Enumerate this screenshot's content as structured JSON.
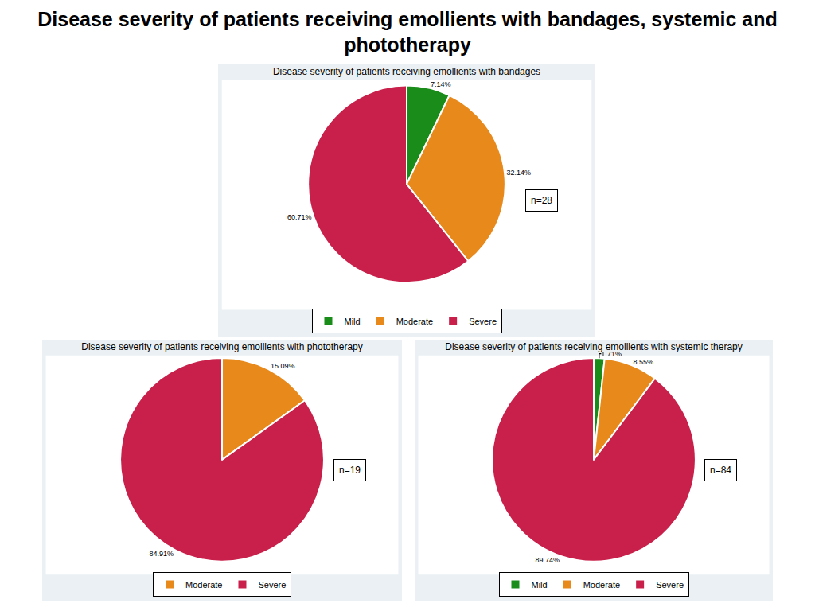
{
  "title": "Disease severity of patients receiving emollients with bandages, systemic and phototherapy",
  "chart_data": [
    {
      "type": "pie",
      "title": "Disease severity of patients receiving emollients with bandages",
      "categories": [
        "Mild",
        "Moderate",
        "Severe"
      ],
      "values": [
        7.14,
        32.14,
        60.71
      ],
      "value_labels": [
        "7.14%",
        "32.14%",
        "60.71%"
      ],
      "colors": [
        "#1a8c1a",
        "#e8891c",
        "#c8204a"
      ],
      "data_labels": true,
      "legend": "bottom",
      "annotations": [
        "n=28"
      ]
    },
    {
      "type": "pie",
      "title": "Disease severity of patients receiving emollients with phototherapy",
      "categories": [
        "Moderate",
        "Severe"
      ],
      "values": [
        15.09,
        84.91
      ],
      "value_labels": [
        "15.09%",
        "84.91%"
      ],
      "colors": [
        "#e8891c",
        "#c8204a"
      ],
      "data_labels": true,
      "legend": "bottom",
      "annotations": [
        "n=19"
      ]
    },
    {
      "type": "pie",
      "title": "Disease severity of patients receiving emollients with systemic therapy",
      "categories": [
        "Mild",
        "Moderate",
        "Severe"
      ],
      "values": [
        1.71,
        8.55,
        89.74
      ],
      "value_labels": [
        "1.71%",
        "8.55%",
        "89.74%"
      ],
      "colors": [
        "#1a8c1a",
        "#e8891c",
        "#c8204a"
      ],
      "data_labels": true,
      "legend": "bottom",
      "annotations": [
        "n=84"
      ]
    }
  ]
}
